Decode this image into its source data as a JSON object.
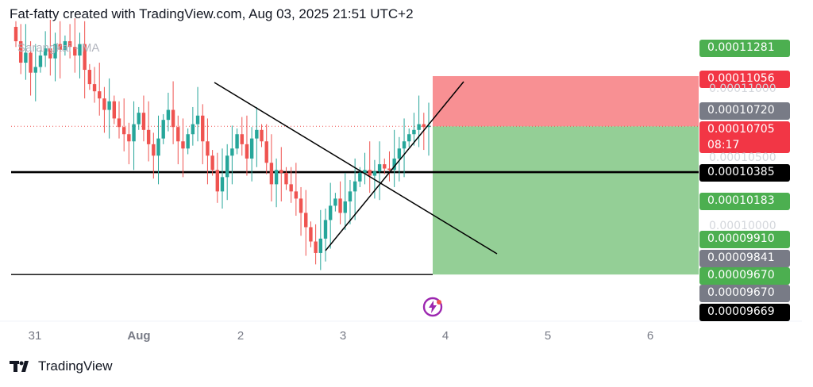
{
  "header": {
    "title": "Fat-fatty created with TradingView.com, Aug 03, 2025 21:51 UTC+2"
  },
  "indicator_label": "Sarangkai - MA",
  "footer": {
    "brand": "TradingView"
  },
  "price_labels": [
    {
      "text": "0.00011281",
      "color": "#4caf50"
    },
    {
      "text": "0.00011056",
      "color": "#f23645"
    },
    {
      "text": "0.00010720",
      "color": "#787b86"
    },
    {
      "text": "0.00010705",
      "sub": "08:17",
      "color": "#f23645"
    },
    {
      "text": "0.00010385",
      "color": "#000000"
    },
    {
      "text": "0.00010183",
      "color": "#4caf50"
    },
    {
      "text": "0.00009910",
      "color": "#4caf50"
    },
    {
      "text": "0.00009841",
      "color": "#787b86"
    },
    {
      "text": "0.00009670",
      "color": "#4caf50"
    },
    {
      "text": "0.00009670",
      "color": "#787b86"
    },
    {
      "text": "0.00009669",
      "color": "#000000"
    }
  ],
  "faint_ticks": [
    "0.00011000",
    "0.00010500",
    "0.00010000"
  ],
  "x_ticks": [
    "31",
    "Aug",
    "2",
    "3",
    "4",
    "5",
    "6"
  ],
  "chart_data": {
    "type": "candlestick",
    "title": "",
    "ylim": [
      9.55e-05,
      0.0001145
    ],
    "x_ticks": [
      "31",
      "Aug",
      "2",
      "3",
      "4",
      "5",
      "6"
    ],
    "colors": {
      "up": "#26a69a",
      "down": "#ef5350",
      "stop_zone": "#f77c80",
      "target_zone": "#81c784"
    },
    "horizontal_levels": [
      0.00010385,
      9.669e-05
    ],
    "last_price": 0.00010705,
    "trade_box": {
      "entry": 0.00010705,
      "stop": 0.00011056,
      "target": 9.669e-05
    },
    "closes": [
      0.000113,
      0.0001115,
      0.0001122,
      0.0001108,
      0.0001112,
      0.000112,
      0.0001125,
      0.0001118,
      0.0001128,
      0.0001124,
      0.000113,
      0.0001126,
      0.000112,
      0.0001128,
      0.000111,
      0.00011,
      0.0001095,
      0.000109,
      0.0001082,
      0.0001088,
      0.0001076,
      0.000107,
      0.0001065,
      0.000106,
      0.0001072,
      0.000108,
      0.0001068,
      0.0001058,
      0.000105,
      0.0001062,
      0.0001075,
      0.0001082,
      0.000107,
      0.000106,
      0.0001055,
      0.0001065,
      0.0001072,
      0.0001078,
      0.000106,
      0.000105,
      0.000104,
      0.0001025,
      0.0001035,
      0.000105,
      0.0001055,
      0.0001065,
      0.0001058,
      0.0001048,
      0.0001062,
      0.0001068,
      0.000106,
      0.0001045,
      0.000103,
      0.000104,
      0.0001038,
      0.000103,
      0.0001025,
      0.000102,
      0.000101,
      0.0001,
      9.9e-05,
      9.82e-05,
      9.92e-05,
      0.0001005,
      0.0001015,
      0.000102,
      0.000101,
      0.0001018,
      0.0001025,
      0.0001032,
      0.0001038,
      0.000104,
      0.0001036,
      0.0001039,
      0.0001044,
      0.0001041,
      0.000104,
      0.0001048,
      0.0001055,
      0.000106,
      0.0001065,
      0.0001068,
      0.0001072,
      0.000107,
      0.0001071
    ]
  }
}
